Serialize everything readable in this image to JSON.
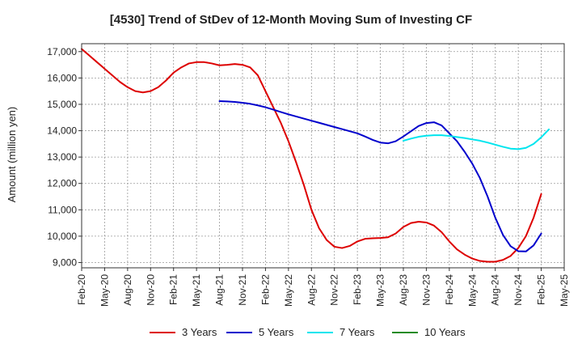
{
  "chart_data": {
    "type": "line",
    "title": "[4530]  Trend of StDev of 12-Month Moving Sum of Investing CF",
    "xlabel": "",
    "ylabel": "Amount (million yen)",
    "ylim": [
      8800,
      17300
    ],
    "yticks": [
      9000,
      10000,
      11000,
      12000,
      13000,
      14000,
      15000,
      16000,
      17000
    ],
    "ytick_labels": [
      "9,000",
      "10,000",
      "11,000",
      "12,000",
      "13,000",
      "14,000",
      "15,000",
      "16,000",
      "17,000"
    ],
    "x_categories": [
      "Feb-20",
      "May-20",
      "Aug-20",
      "Nov-20",
      "Feb-21",
      "May-21",
      "Aug-21",
      "Nov-21",
      "Feb-22",
      "May-22",
      "Aug-22",
      "Nov-22",
      "Feb-23",
      "May-23",
      "Aug-23",
      "Nov-23",
      "Feb-24",
      "May-24",
      "Aug-24",
      "Nov-24",
      "Feb-25",
      "May-25"
    ],
    "grid": true,
    "legend_position": "bottom",
    "series": [
      {
        "name": "3 Years",
        "color": "#dd0000",
        "start_index": 0,
        "values": [
          17100,
          16850,
          16600,
          16350,
          16100,
          15850,
          15650,
          15500,
          15450,
          15500,
          15650,
          15900,
          16200,
          16400,
          16550,
          16600,
          16600,
          16550,
          16480,
          16500,
          16530,
          16500,
          16400,
          16100,
          15500,
          14900,
          14300,
          13600,
          12800,
          11950,
          11000,
          10300,
          9850,
          9600,
          9550,
          9630,
          9800,
          9900,
          9920,
          9930,
          9960,
          10100,
          10350,
          10500,
          10550,
          10520,
          10400,
          10150,
          9800,
          9500,
          9300,
          9150,
          9060,
          9030,
          9030,
          9100,
          9250,
          9550,
          10000,
          10700,
          11600
        ]
      },
      {
        "name": "5 Years",
        "color": "#0000cc",
        "start_index": 18,
        "values": [
          15120,
          15110,
          15090,
          15060,
          15020,
          14960,
          14890,
          14800,
          14710,
          14620,
          14540,
          14460,
          14380,
          14300,
          14220,
          14140,
          14060,
          13980,
          13900,
          13780,
          13650,
          13550,
          13520,
          13600,
          13780,
          13980,
          14180,
          14290,
          14320,
          14200,
          13900,
          13600,
          13200,
          12750,
          12200,
          11500,
          10700,
          10050,
          9620,
          9430,
          9420,
          9650,
          10100
        ]
      },
      {
        "name": "7 Years",
        "color": "#00e5ee",
        "start_index": 42,
        "values": [
          13620,
          13700,
          13770,
          13810,
          13830,
          13830,
          13800,
          13760,
          13720,
          13670,
          13620,
          13550,
          13470,
          13390,
          13320,
          13300,
          13350,
          13500,
          13750,
          14050
        ]
      },
      {
        "name": "10 Years",
        "color": "#228b22",
        "start_index": 0,
        "values": []
      }
    ]
  }
}
